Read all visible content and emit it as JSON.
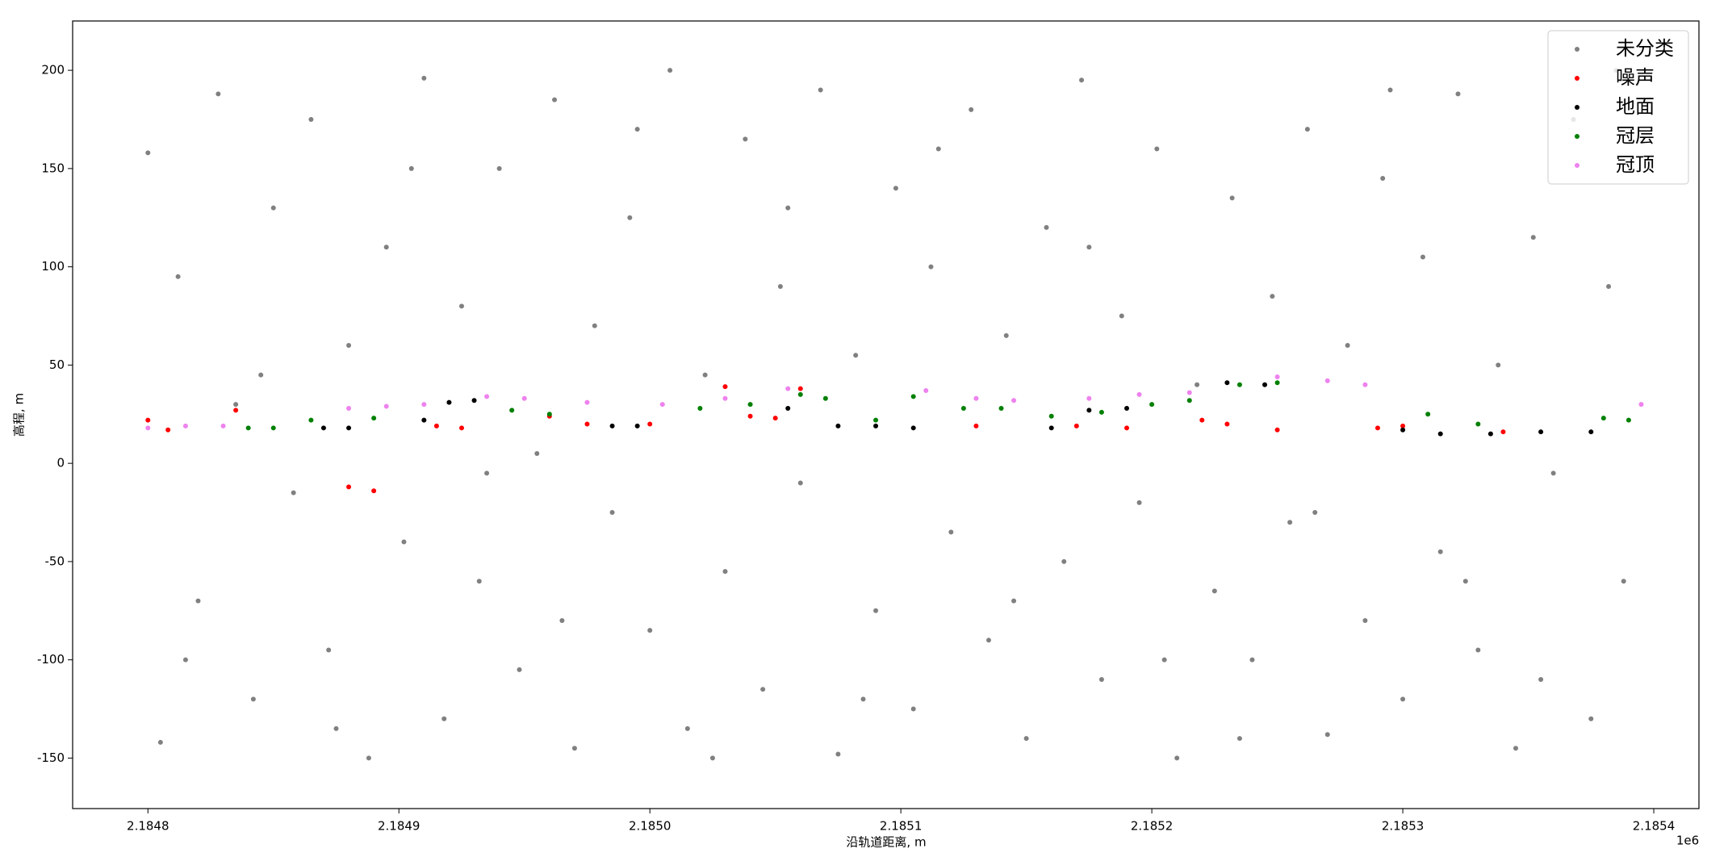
{
  "chart_data": {
    "type": "scatter",
    "xlabel": "沿轨道距离, m",
    "ylabel": "高程, m",
    "x_offset_label": "1e6",
    "xlim": [
      2184770,
      2185418
    ],
    "ylim": [
      -175.7,
      225.1
    ],
    "xticks": [
      {
        "value": 2184800,
        "label": "2.1848"
      },
      {
        "value": 2184900,
        "label": "2.1849"
      },
      {
        "value": 2185000,
        "label": "2.1850"
      },
      {
        "value": 2185100,
        "label": "2.1851"
      },
      {
        "value": 2185200,
        "label": "2.1852"
      },
      {
        "value": 2185300,
        "label": "2.1853"
      },
      {
        "value": 2185400,
        "label": "2.1854"
      }
    ],
    "yticks": [
      -150,
      -100,
      -50,
      0,
      50,
      100,
      150,
      200
    ],
    "legend": "upper right",
    "grid": false,
    "series": [
      {
        "name": "未分类",
        "color": "#808080",
        "x": [
          2184800,
          2184805,
          2184812,
          2184820,
          2184828,
          2184835,
          2184842,
          2184850,
          2184858,
          2184865,
          2184872,
          2184880,
          2184888,
          2184895,
          2184902,
          2184910,
          2184918,
          2184925,
          2184932,
          2184940,
          2184948,
          2184955,
          2184962,
          2184970,
          2184978,
          2184985,
          2184992,
          2185000,
          2185008,
          2185015,
          2185022,
          2185030,
          2185038,
          2185045,
          2185052,
          2185060,
          2185068,
          2185075,
          2185082,
          2185090,
          2185098,
          2185105,
          2185112,
          2185120,
          2185128,
          2185135,
          2185142,
          2185150,
          2185158,
          2185165,
          2185172,
          2185180,
          2185188,
          2185195,
          2185202,
          2185210,
          2185218,
          2185225,
          2185232,
          2185240,
          2185248,
          2185255,
          2185262,
          2185270,
          2185278,
          2185285,
          2185292,
          2185300,
          2185308,
          2185315,
          2185322,
          2185330,
          2185338,
          2185345,
          2185352,
          2185360,
          2185368,
          2185375,
          2185382,
          2185388,
          2184815,
          2184845,
          2184875,
          2184905,
          2184935,
          2184965,
          2184995,
          2185025,
          2185055,
          2185085,
          2185115,
          2185145,
          2185175,
          2185205,
          2185235,
          2185265,
          2185295,
          2185325,
          2185355,
          2185385
        ],
        "y": [
          158,
          -142,
          95,
          -70,
          188,
          30,
          -120,
          130,
          -15,
          175,
          -95,
          60,
          -150,
          110,
          -40,
          196,
          -130,
          80,
          -60,
          150,
          -105,
          5,
          185,
          -145,
          70,
          -25,
          125,
          -85,
          200,
          -135,
          45,
          -55,
          165,
          -115,
          90,
          -10,
          190,
          -148,
          55,
          -75,
          140,
          -125,
          100,
          -35,
          180,
          -90,
          65,
          -140,
          120,
          -50,
          195,
          -110,
          75,
          -20,
          160,
          -150,
          40,
          -65,
          135,
          -100,
          85,
          -30,
          170,
          -138,
          60,
          -80,
          145,
          -120,
          105,
          -45,
          188,
          -95,
          50,
          -145,
          115,
          -5,
          175,
          -130,
          90,
          -60,
          -100,
          45,
          -135,
          150,
          -5,
          -80,
          170,
          -150,
          130,
          -120,
          160,
          -70,
          110,
          -100,
          -140,
          -25,
          190,
          -60,
          -110,
          200
        ]
      },
      {
        "name": "噪声",
        "color": "#ff0000",
        "x": [
          2184800,
          2184808,
          2184880,
          2184890,
          2184915,
          2184925,
          2184960,
          2184975,
          2185000,
          2185040,
          2185050,
          2185130,
          2185170,
          2185190,
          2185220,
          2185230,
          2185250,
          2185290,
          2185300,
          2185340,
          2185030,
          2185060,
          2184835
        ],
        "y": [
          22,
          17,
          -12,
          -14,
          19,
          18,
          24,
          20,
          20,
          24,
          23,
          19,
          19,
          18,
          22,
          20,
          17,
          18,
          19,
          16,
          39,
          38,
          27
        ]
      },
      {
        "name": "地面",
        "color": "#000000",
        "x": [
          2184870,
          2184880,
          2184910,
          2184920,
          2184930,
          2184985,
          2184995,
          2185055,
          2185075,
          2185090,
          2185105,
          2185160,
          2185175,
          2185190,
          2185230,
          2185245,
          2185300,
          2185315,
          2185335,
          2185355,
          2185375
        ],
        "y": [
          18,
          18,
          22,
          31,
          32,
          19,
          19,
          28,
          19,
          19,
          18,
          18,
          27,
          28,
          41,
          40,
          17,
          15,
          15,
          16,
          16
        ]
      },
      {
        "name": "冠层",
        "color": "#008000",
        "x": [
          2184840,
          2184850,
          2184865,
          2184890,
          2184945,
          2184960,
          2185020,
          2185040,
          2185060,
          2185070,
          2185090,
          2185105,
          2185125,
          2185140,
          2185160,
          2185180,
          2185200,
          2185215,
          2185235,
          2185250,
          2185310,
          2185330,
          2185380,
          2185390
        ],
        "y": [
          18,
          18,
          22,
          23,
          27,
          25,
          28,
          30,
          35,
          33,
          22,
          34,
          28,
          28,
          24,
          26,
          30,
          32,
          40,
          41,
          25,
          20,
          23,
          22
        ]
      },
      {
        "name": "冠顶",
        "color": "#ee82ee",
        "x": [
          2184800,
          2184815,
          2184830,
          2184880,
          2184895,
          2184910,
          2184935,
          2184950,
          2184975,
          2185005,
          2185030,
          2185055,
          2185110,
          2185130,
          2185145,
          2185175,
          2185195,
          2185215,
          2185250,
          2185270,
          2185285,
          2185395
        ],
        "y": [
          18,
          19,
          19,
          28,
          29,
          30,
          34,
          33,
          31,
          30,
          33,
          38,
          37,
          33,
          32,
          33,
          35,
          36,
          44,
          42,
          40,
          30
        ]
      }
    ]
  }
}
